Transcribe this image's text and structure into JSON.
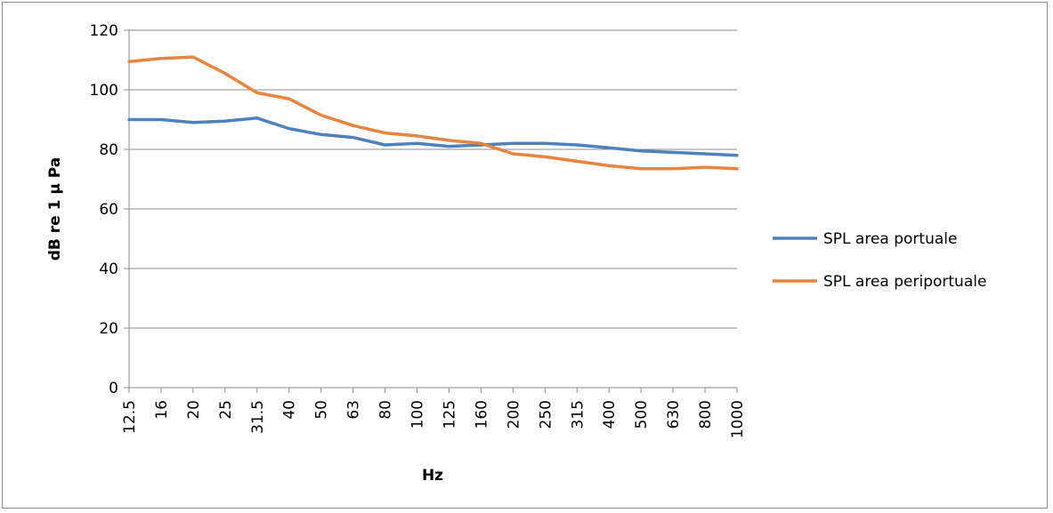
{
  "chart_data": {
    "type": "line",
    "title": "",
    "xlabel": "Hz",
    "ylabel": "dB re 1 µ Pa",
    "categories": [
      "12.5",
      "16",
      "20",
      "25",
      "31.5",
      "40",
      "50",
      "63",
      "80",
      "100",
      "125",
      "160",
      "200",
      "250",
      "315",
      "400",
      "500",
      "630",
      "800",
      "1000"
    ],
    "ylim": [
      0,
      120
    ],
    "yticks": [
      0,
      20,
      40,
      60,
      80,
      100,
      120
    ],
    "grid": "horizontal",
    "legend_position": "right",
    "series": [
      {
        "name": "SPL area portuale",
        "color": "#4f81bd",
        "values": [
          90,
          90,
          89,
          89.5,
          90.5,
          87,
          85,
          84,
          81.5,
          82,
          81,
          81.5,
          82,
          82,
          81.5,
          80.5,
          79.5,
          79,
          78.5,
          78
        ]
      },
      {
        "name": "SPL area periportuale",
        "color": "#e8843d",
        "values": [
          109.5,
          110.5,
          111,
          105.5,
          99,
          97,
          91.5,
          88,
          85.5,
          84.5,
          83,
          82,
          78.5,
          77.5,
          76,
          74.5,
          73.5,
          73.5,
          74,
          73.5
        ]
      }
    ]
  }
}
